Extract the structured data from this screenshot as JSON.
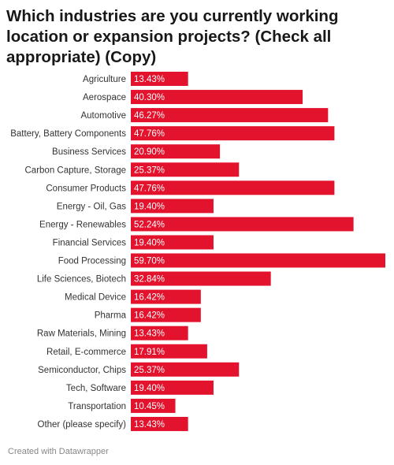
{
  "title": "Which industries are you currently working location or expansion projects? (Check all appropriate) (Copy)",
  "footer": "Created with Datawrapper",
  "colors": {
    "bar": "#e3122d",
    "label": "#333333",
    "value_label": "#ffffff"
  },
  "chart_data": {
    "type": "bar",
    "orientation": "horizontal",
    "title": "Which industries are you currently working location or expansion projects? (Check all appropriate) (Copy)",
    "xlabel": "",
    "ylabel": "",
    "xlim": [
      0,
      59.7
    ],
    "grid": false,
    "legend": "none",
    "categories": [
      "Agriculture",
      "Aerospace",
      "Automotive",
      "Battery, Battery Components",
      "Business Services",
      "Carbon Capture, Storage",
      "Consumer Products",
      "Energy - Oil, Gas",
      "Energy - Renewables",
      "Financial Services",
      "Food Processing",
      "Life Sciences, Biotech",
      "Medical Device",
      "Pharma",
      "Raw Materials, Mining",
      "Retail, E-commerce",
      "Semiconductor, Chips",
      "Tech, Software",
      "Transportation",
      "Other (please specify)"
    ],
    "values": [
      13.43,
      40.3,
      46.27,
      47.76,
      20.9,
      25.37,
      47.76,
      19.4,
      52.24,
      19.4,
      59.7,
      32.84,
      16.42,
      16.42,
      13.43,
      17.91,
      25.37,
      19.4,
      10.45,
      13.43
    ],
    "value_labels": [
      "13.43%",
      "40.30%",
      "46.27%",
      "47.76%",
      "20.90%",
      "25.37%",
      "47.76%",
      "19.40%",
      "52.24%",
      "19.40%",
      "59.70%",
      "32.84%",
      "16.42%",
      "16.42%",
      "13.43%",
      "17.91%",
      "25.37%",
      "19.40%",
      "10.45%",
      "13.43%"
    ]
  }
}
